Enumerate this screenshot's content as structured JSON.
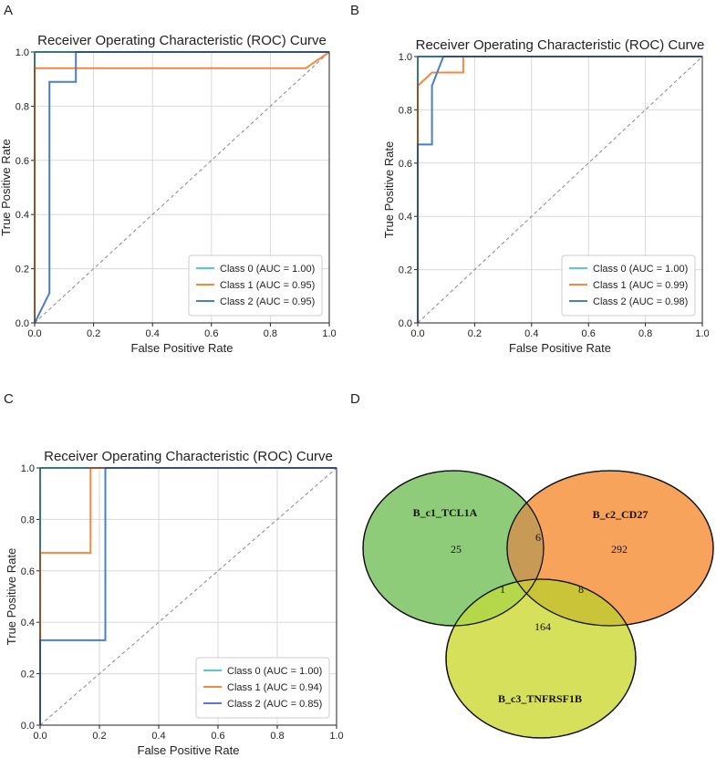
{
  "panels": {
    "A": "A",
    "B": "B",
    "C": "C",
    "D": "D"
  },
  "chart_data": [
    {
      "type": "line",
      "panel": "A",
      "title": "Receiver Operating Characteristic (ROC) Curve",
      "xlabel": "False Positive Rate",
      "ylabel": "True Positive Rate",
      "xlim": [
        0,
        1
      ],
      "ylim": [
        0,
        1
      ],
      "xticks": [
        "0.0",
        "0.2",
        "0.4",
        "0.6",
        "0.8",
        "1.0"
      ],
      "yticks": [
        "0.0",
        "0.2",
        "0.4",
        "0.6",
        "0.8",
        "1.0"
      ],
      "grid": true,
      "legend_position": "bottom-right",
      "diagonal": true,
      "series": [
        {
          "name": "Class 0 (AUC = 1.00)",
          "color": "#5bc8d0",
          "x": [
            0,
            0,
            1
          ],
          "y": [
            0,
            1,
            1
          ]
        },
        {
          "name": "Class 1 (AUC = 0.95)",
          "color": "#f08a3c",
          "x": [
            0,
            0,
            0.92,
            1
          ],
          "y": [
            0,
            0.94,
            0.94,
            1
          ]
        },
        {
          "name": "Class 2 (AUC = 0.95)",
          "color": "#4a7fc8",
          "x": [
            0,
            0.05,
            0.05,
            0.14,
            0.14,
            1
          ],
          "y": [
            0,
            0.11,
            0.89,
            0.89,
            1,
            1
          ]
        }
      ]
    },
    {
      "type": "line",
      "panel": "B",
      "title": "Receiver Operating Characteristic (ROC) Curve",
      "xlabel": "False Positive Rate",
      "ylabel": "True Positive Rate",
      "xlim": [
        0,
        1
      ],
      "ylim": [
        0,
        1
      ],
      "xticks": [
        "0.0",
        "0.2",
        "0.4",
        "0.6",
        "0.8",
        "1.0"
      ],
      "yticks": [
        "0.0",
        "0.2",
        "0.4",
        "0.6",
        "0.8",
        "1.0"
      ],
      "grid": true,
      "legend_position": "bottom-right",
      "diagonal": true,
      "series": [
        {
          "name": "Class 0 (AUC = 1.00)",
          "color": "#5bc8d0",
          "x": [
            0,
            0,
            1
          ],
          "y": [
            0,
            1,
            1
          ]
        },
        {
          "name": "Class 1 (AUC = 0.99)",
          "color": "#f08a3c",
          "x": [
            0,
            0,
            0.05,
            0.05,
            0.16,
            0.16,
            1
          ],
          "y": [
            0,
            0.89,
            0.94,
            0.94,
            0.94,
            1,
            1
          ]
        },
        {
          "name": "Class 2 (AUC = 0.98)",
          "color": "#4a7fc8",
          "x": [
            0,
            0,
            0.05,
            0.05,
            0.09,
            0.09,
            1
          ],
          "y": [
            0,
            0.67,
            0.67,
            0.89,
            1,
            1,
            1
          ]
        }
      ]
    },
    {
      "type": "line",
      "panel": "C",
      "title": "Receiver Operating Characteristic (ROC) Curve",
      "xlabel": "False Positive Rate",
      "ylabel": "True Positive Rate",
      "xlim": [
        0,
        1
      ],
      "ylim": [
        0,
        1
      ],
      "xticks": [
        "0.0",
        "0.2",
        "0.4",
        "0.6",
        "0.8",
        "1.0"
      ],
      "yticks": [
        "0.0",
        "0.2",
        "0.4",
        "0.6",
        "0.8",
        "1.0"
      ],
      "grid": true,
      "legend_position": "bottom-right",
      "diagonal": true,
      "series": [
        {
          "name": "Class 0 (AUC = 1.00)",
          "color": "#5bc8d0",
          "x": [
            0,
            0,
            1
          ],
          "y": [
            0,
            1,
            1
          ]
        },
        {
          "name": "Class 1 (AUC = 0.94)",
          "color": "#f08a3c",
          "x": [
            0,
            0,
            0.17,
            0.17,
            1
          ],
          "y": [
            0,
            0.67,
            0.67,
            1,
            1
          ]
        },
        {
          "name": "Class 2 (AUC = 0.85)",
          "color": "#4a7fc8",
          "x": [
            0,
            0,
            0.22,
            0.22,
            1
          ],
          "y": [
            0,
            0.33,
            0.33,
            1,
            1
          ]
        }
      ]
    },
    {
      "type": "venn",
      "panel": "D",
      "sets": [
        {
          "name": "B_c1_TCL1A",
          "color": "#8fcc7a"
        },
        {
          "name": "B_c2_CD27",
          "color": "#f7a35c"
        },
        {
          "name": "B_c3_TNFRSF1B",
          "color": "#d6e05a"
        }
      ],
      "regions": {
        "only_1": "25",
        "only_2": "292",
        "only_3": "164",
        "1_2": "6",
        "1_3": "1",
        "2_3": "8"
      }
    }
  ]
}
